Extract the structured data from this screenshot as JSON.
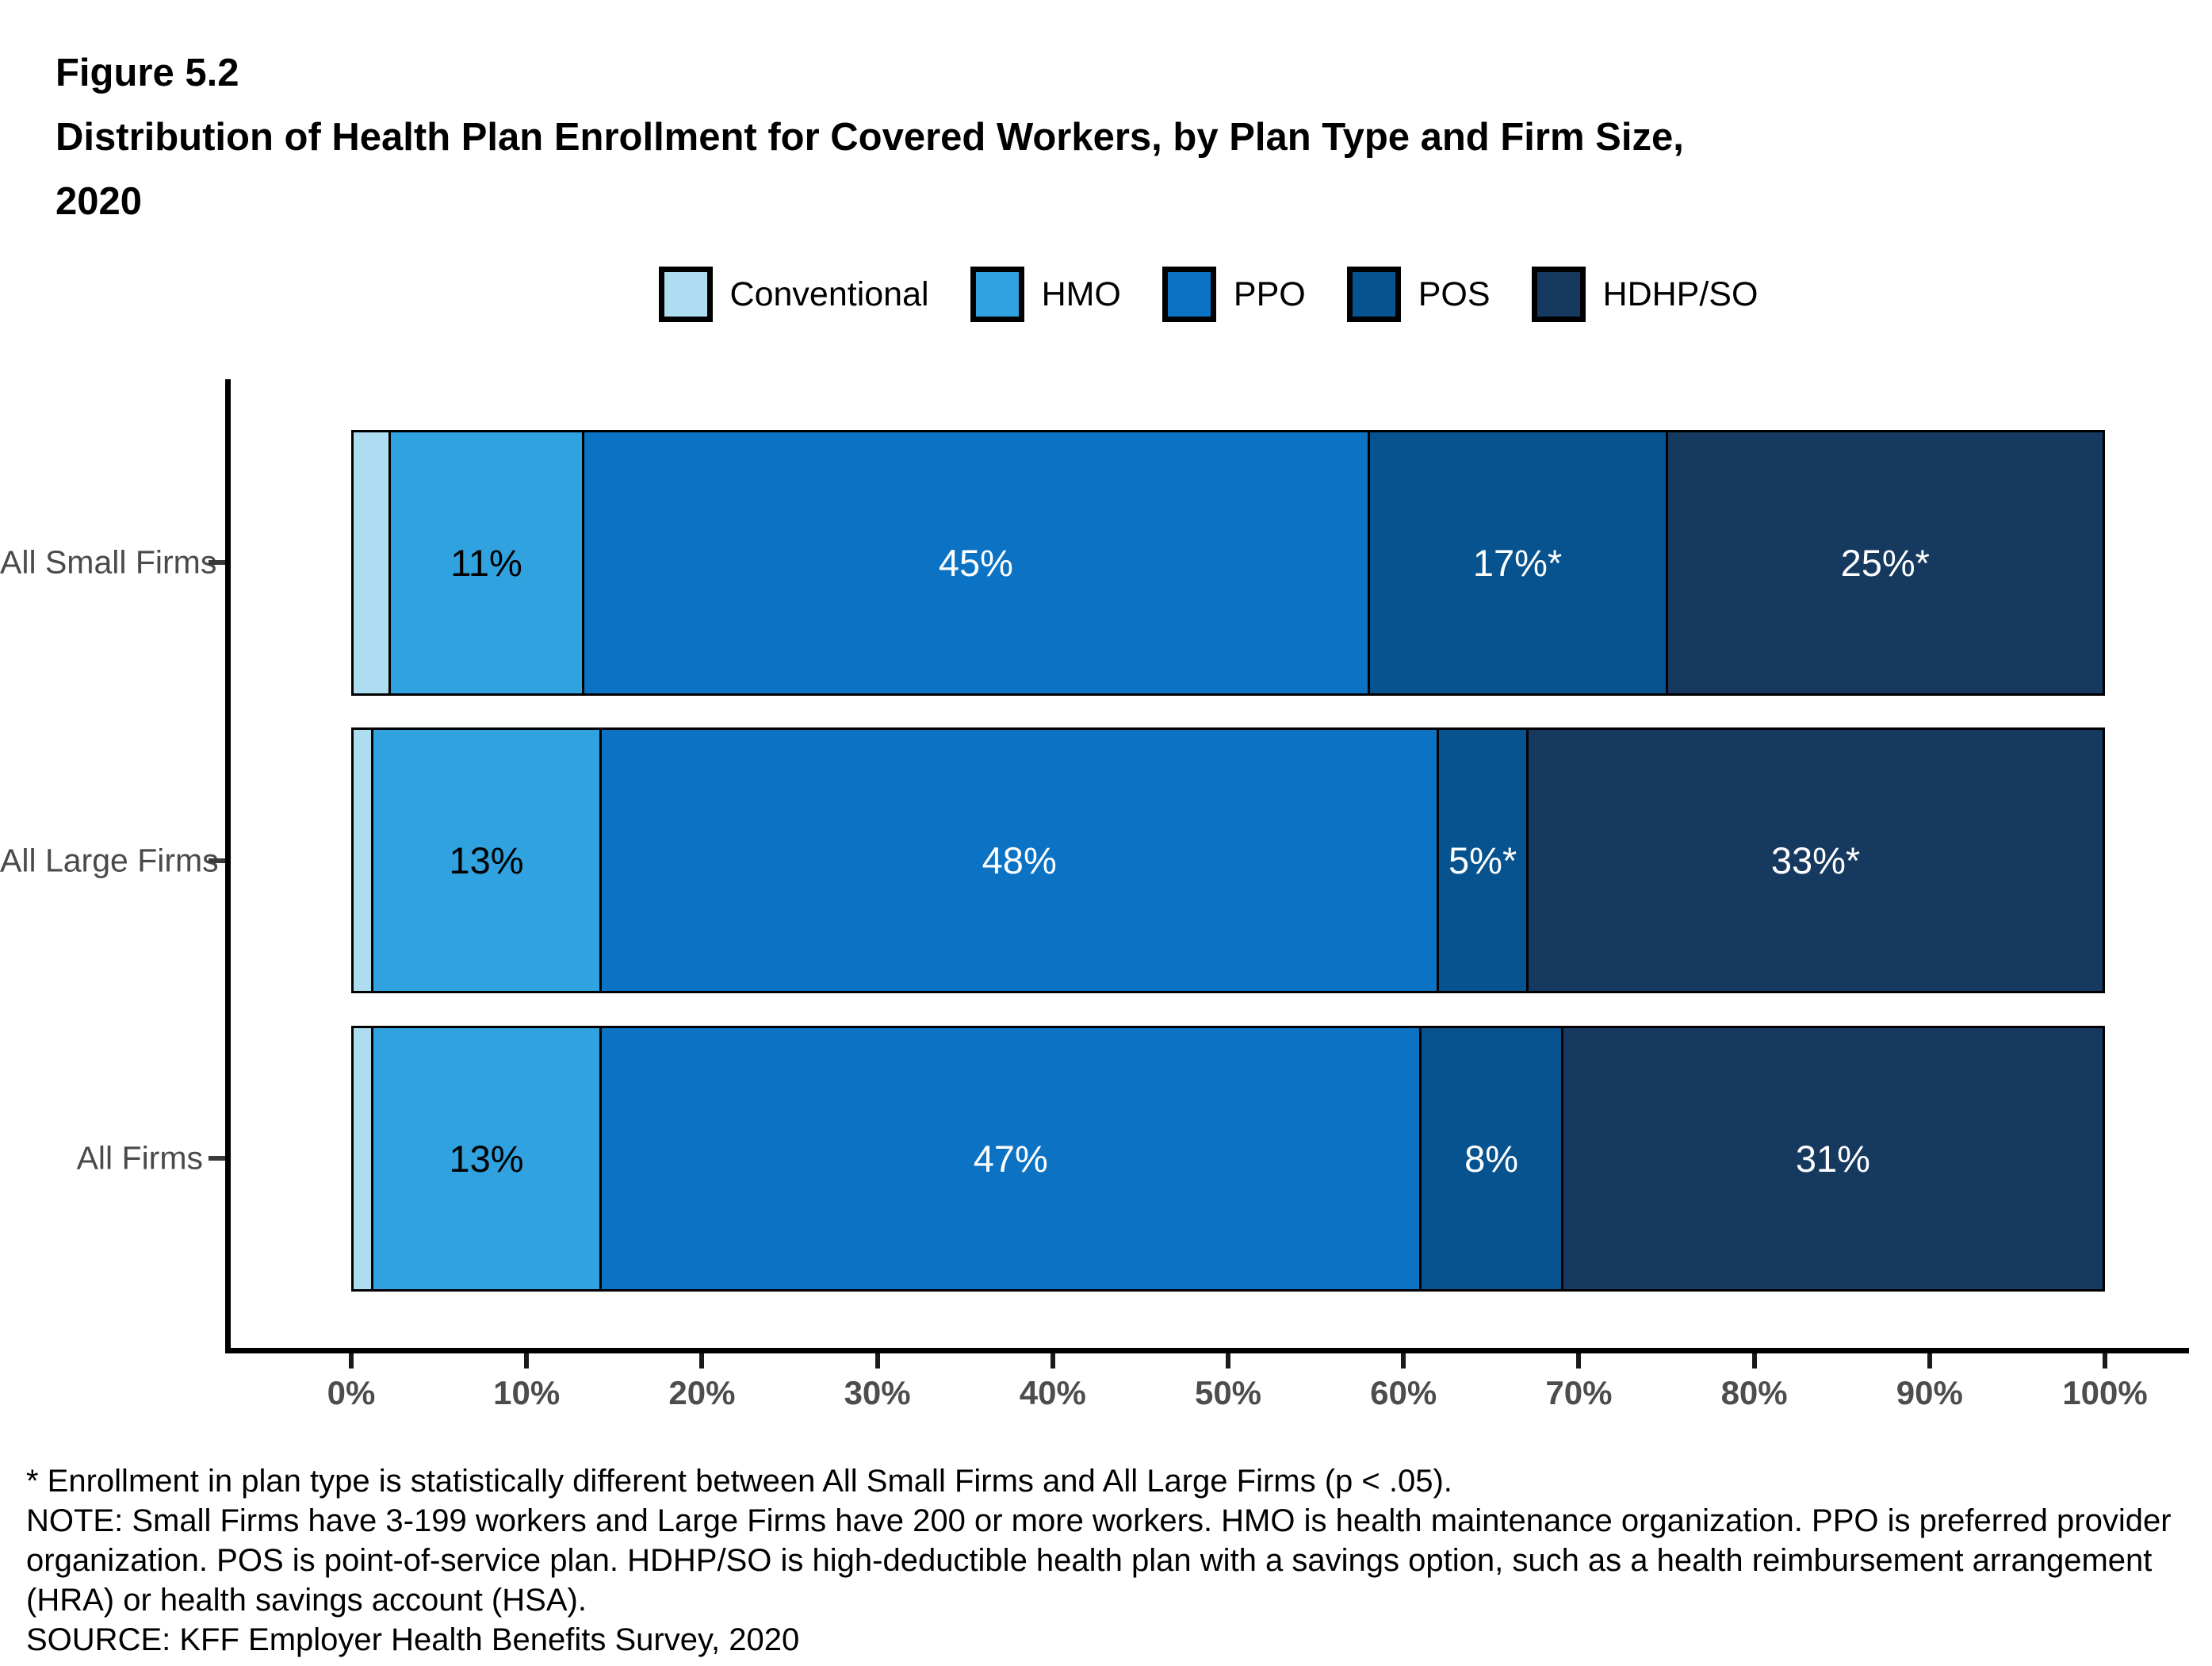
{
  "header": {
    "figure_label": "Figure 5.2",
    "title": "Distribution of Health Plan Enrollment for Covered Workers, by Plan Type and Firm Size, 2020",
    "title_lines": [
      "Distribution of Health Plan Enrollment for Covered Workers, by Plan Type and Firm Size,",
      "2020"
    ]
  },
  "chart_data": {
    "type": "bar",
    "orientation": "horizontal-stacked",
    "title": "Distribution of Health Plan Enrollment for Covered Workers, by Plan Type and Firm Size, 2020",
    "categories": [
      "All Small Firms",
      "All Large Firms",
      "All Firms"
    ],
    "series": [
      {
        "name": "Conventional",
        "color": "#AEDCF0",
        "label_color": null,
        "values": [
          2,
          1,
          1
        ],
        "labels": [
          "",
          "",
          ""
        ]
      },
      {
        "name": "HMO",
        "color": "#30A2E0",
        "label_color": "#000000",
        "values": [
          11,
          13,
          13
        ],
        "labels": [
          "11%",
          "13%",
          "13%"
        ]
      },
      {
        "name": "PPO",
        "color": "#0B72C4",
        "label_color": "#FFFFFF",
        "values": [
          45,
          48,
          47
        ],
        "labels": [
          "45%",
          "48%",
          "47%"
        ]
      },
      {
        "name": "POS",
        "color": "#07538F",
        "label_color": "#FFFFFF",
        "values": [
          17,
          5,
          8
        ],
        "labels": [
          "17%*",
          "5%*",
          "8%"
        ]
      },
      {
        "name": "HDHP/SO",
        "color": "#16395F",
        "label_color": "#FFFFFF",
        "values": [
          25,
          33,
          31
        ],
        "labels": [
          "25%*",
          "33%*",
          "31%"
        ]
      }
    ],
    "x_ticks": [
      "0%",
      "10%",
      "20%",
      "30%",
      "40%",
      "50%",
      "60%",
      "70%",
      "80%",
      "90%",
      "100%"
    ],
    "xlim": [
      0,
      100
    ],
    "grid": false,
    "legend_position": "top-center",
    "axis_color": "#000000",
    "tick_label_color": "#4d4d4d"
  },
  "footnotes": {
    "asterisk": "* Enrollment in plan type is statistically different between All Small Firms and All Large Firms (p < .05).",
    "note": "NOTE: Small Firms have 3-199 workers and Large Firms have 200 or more workers. HMO is health maintenance organization. PPO is preferred provider organization. POS is point-of-service plan. HDHP/SO is high-deductible health plan with a savings option, such as a health reimbursement arrangement (HRA) or health savings account (HSA).",
    "source": "SOURCE: KFF Employer Health Benefits Survey, 2020"
  }
}
